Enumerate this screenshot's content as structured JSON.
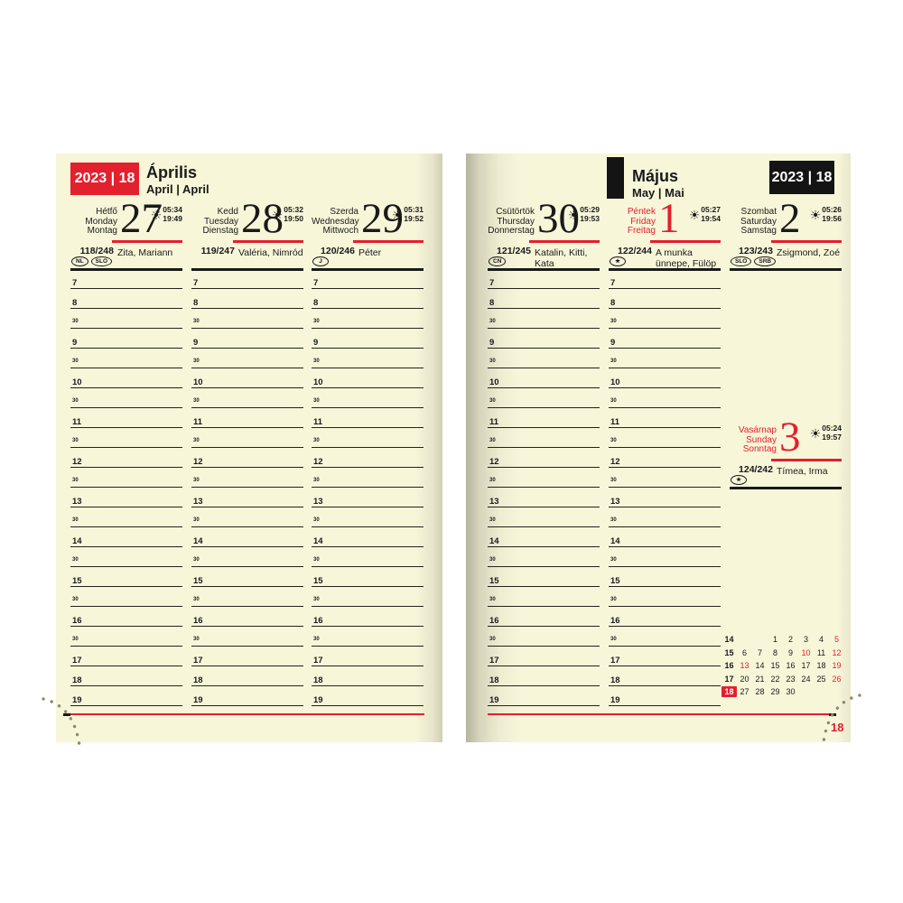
{
  "colors": {
    "accent_red": "#e3202e",
    "paper_cream": "#f7f6d9",
    "ink": "#1a1a1a"
  },
  "header_left": {
    "badge": "2023 | 18",
    "month": "Április",
    "subtitle": "April | April"
  },
  "header_right": {
    "badge": "2023 | 18",
    "month": "Május",
    "subtitle": "May | Mai"
  },
  "sun_glyph": "☀",
  "time_slots": [
    "7",
    "8",
    "30",
    "9",
    "30",
    "10",
    "30",
    "11",
    "30",
    "12",
    "30",
    "13",
    "30",
    "14",
    "30",
    "15",
    "30",
    "16",
    "30",
    "17",
    "18",
    "19"
  ],
  "left_days": [
    {
      "names": [
        "Hétfő",
        "Monday",
        "Montag"
      ],
      "number": "27",
      "sunrise": "05:34",
      "sunset": "19:49",
      "day_count": "118/248",
      "namedays": "Zita, Mariann",
      "badges": [
        "NL",
        "SLO"
      ],
      "red": false
    },
    {
      "names": [
        "Kedd",
        "Tuesday",
        "Dienstag"
      ],
      "number": "28",
      "sunrise": "05:32",
      "sunset": "19:50",
      "day_count": "119/247",
      "namedays": "Valéria, Nimród",
      "badges": [],
      "red": false
    },
    {
      "names": [
        "Szerda",
        "Wednesday",
        "Mittwoch"
      ],
      "number": "29",
      "sunrise": "05:31",
      "sunset": "19:52",
      "day_count": "120/246",
      "namedays": "Péter",
      "badges": [
        "J"
      ],
      "red": false
    }
  ],
  "right_days": [
    {
      "names": [
        "Csütörtök",
        "Thursday",
        "Donnerstag"
      ],
      "number": "30",
      "sunrise": "05:29",
      "sunset": "19:53",
      "day_count": "121/245",
      "namedays": "Katalin, Kitti, Kata",
      "badges": [
        "CN"
      ],
      "red": false
    },
    {
      "names": [
        "Péntek",
        "Friday",
        "Freitag"
      ],
      "number": "1",
      "sunrise": "05:27",
      "sunset": "19:54",
      "day_count": "122/244",
      "namedays": "A munka ünnepe, Fülöp",
      "badges": [
        "★"
      ],
      "red": true
    },
    {
      "names": [
        "Szombat",
        "Saturday",
        "Samstag"
      ],
      "number": "2",
      "sunrise": "05:26",
      "sunset": "19:56",
      "day_count": "123/243",
      "namedays": "Zsigmond, Zoé",
      "badges": [
        "SLO",
        "SRB"
      ],
      "red": false
    }
  ],
  "sunday": {
    "names": [
      "Vasárnap",
      "Sunday",
      "Sonntag"
    ],
    "number": "3",
    "sunrise": "05:24",
    "sunset": "19:57",
    "day_count": "124/242",
    "namedays": "Tímea, Irma",
    "badges": [
      "★"
    ],
    "red": true
  },
  "mini_calendar": {
    "rows": [
      {
        "week": "14",
        "highlight": false,
        "days": [
          {
            "t": ""
          },
          {
            "t": ""
          },
          {
            "t": "1"
          },
          {
            "t": "2"
          },
          {
            "t": "3"
          },
          {
            "t": "4"
          },
          {
            "t": "5",
            "red": true
          }
        ]
      },
      {
        "week": "15",
        "highlight": false,
        "days": [
          {
            "t": "6"
          },
          {
            "t": "7"
          },
          {
            "t": "8"
          },
          {
            "t": "9"
          },
          {
            "t": "10",
            "red": true
          },
          {
            "t": "11"
          },
          {
            "t": "12",
            "red": true
          }
        ]
      },
      {
        "week": "16",
        "highlight": false,
        "days": [
          {
            "t": "13",
            "red": true
          },
          {
            "t": "14"
          },
          {
            "t": "15"
          },
          {
            "t": "16"
          },
          {
            "t": "17"
          },
          {
            "t": "18"
          },
          {
            "t": "19",
            "red": true
          }
        ]
      },
      {
        "week": "17",
        "highlight": false,
        "days": [
          {
            "t": "20"
          },
          {
            "t": "21"
          },
          {
            "t": "22"
          },
          {
            "t": "23"
          },
          {
            "t": "24"
          },
          {
            "t": "25"
          },
          {
            "t": "26",
            "red": true
          }
        ]
      },
      {
        "week": "18",
        "highlight": true,
        "days": [
          {
            "t": "27"
          },
          {
            "t": "28"
          },
          {
            "t": "29"
          },
          {
            "t": "30"
          },
          {
            "t": ""
          },
          {
            "t": ""
          },
          {
            "t": ""
          }
        ]
      }
    ]
  },
  "page_number": "18"
}
